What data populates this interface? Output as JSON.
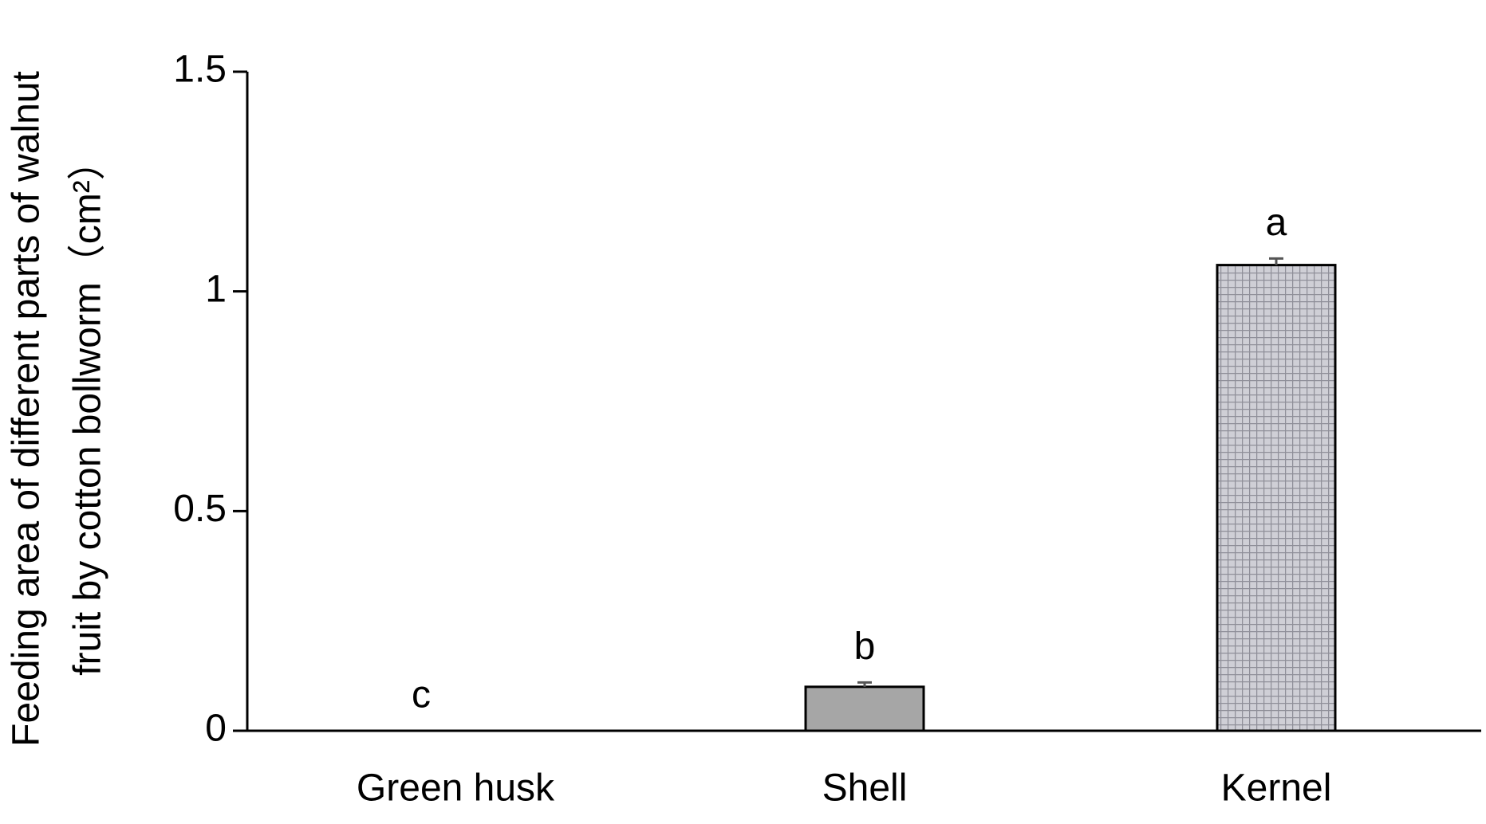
{
  "chart_data": {
    "type": "bar",
    "ylabel_lines": [
      "Feeding area of different parts of walnut",
      "fruit by cotton bollworm（cm²）"
    ],
    "categories": [
      "Green husk",
      "Shell",
      "Kernel"
    ],
    "values": [
      0,
      0.1,
      1.06
    ],
    "errors": [
      null,
      0.01,
      0.015
    ],
    "significance": [
      "c",
      "b",
      "a"
    ],
    "colors": [
      "#ffffff",
      "#a6a6a6",
      "#c4c4cc"
    ],
    "ylim": [
      0,
      1.5
    ],
    "yticks": [
      0,
      0.5,
      1,
      1.5
    ]
  }
}
